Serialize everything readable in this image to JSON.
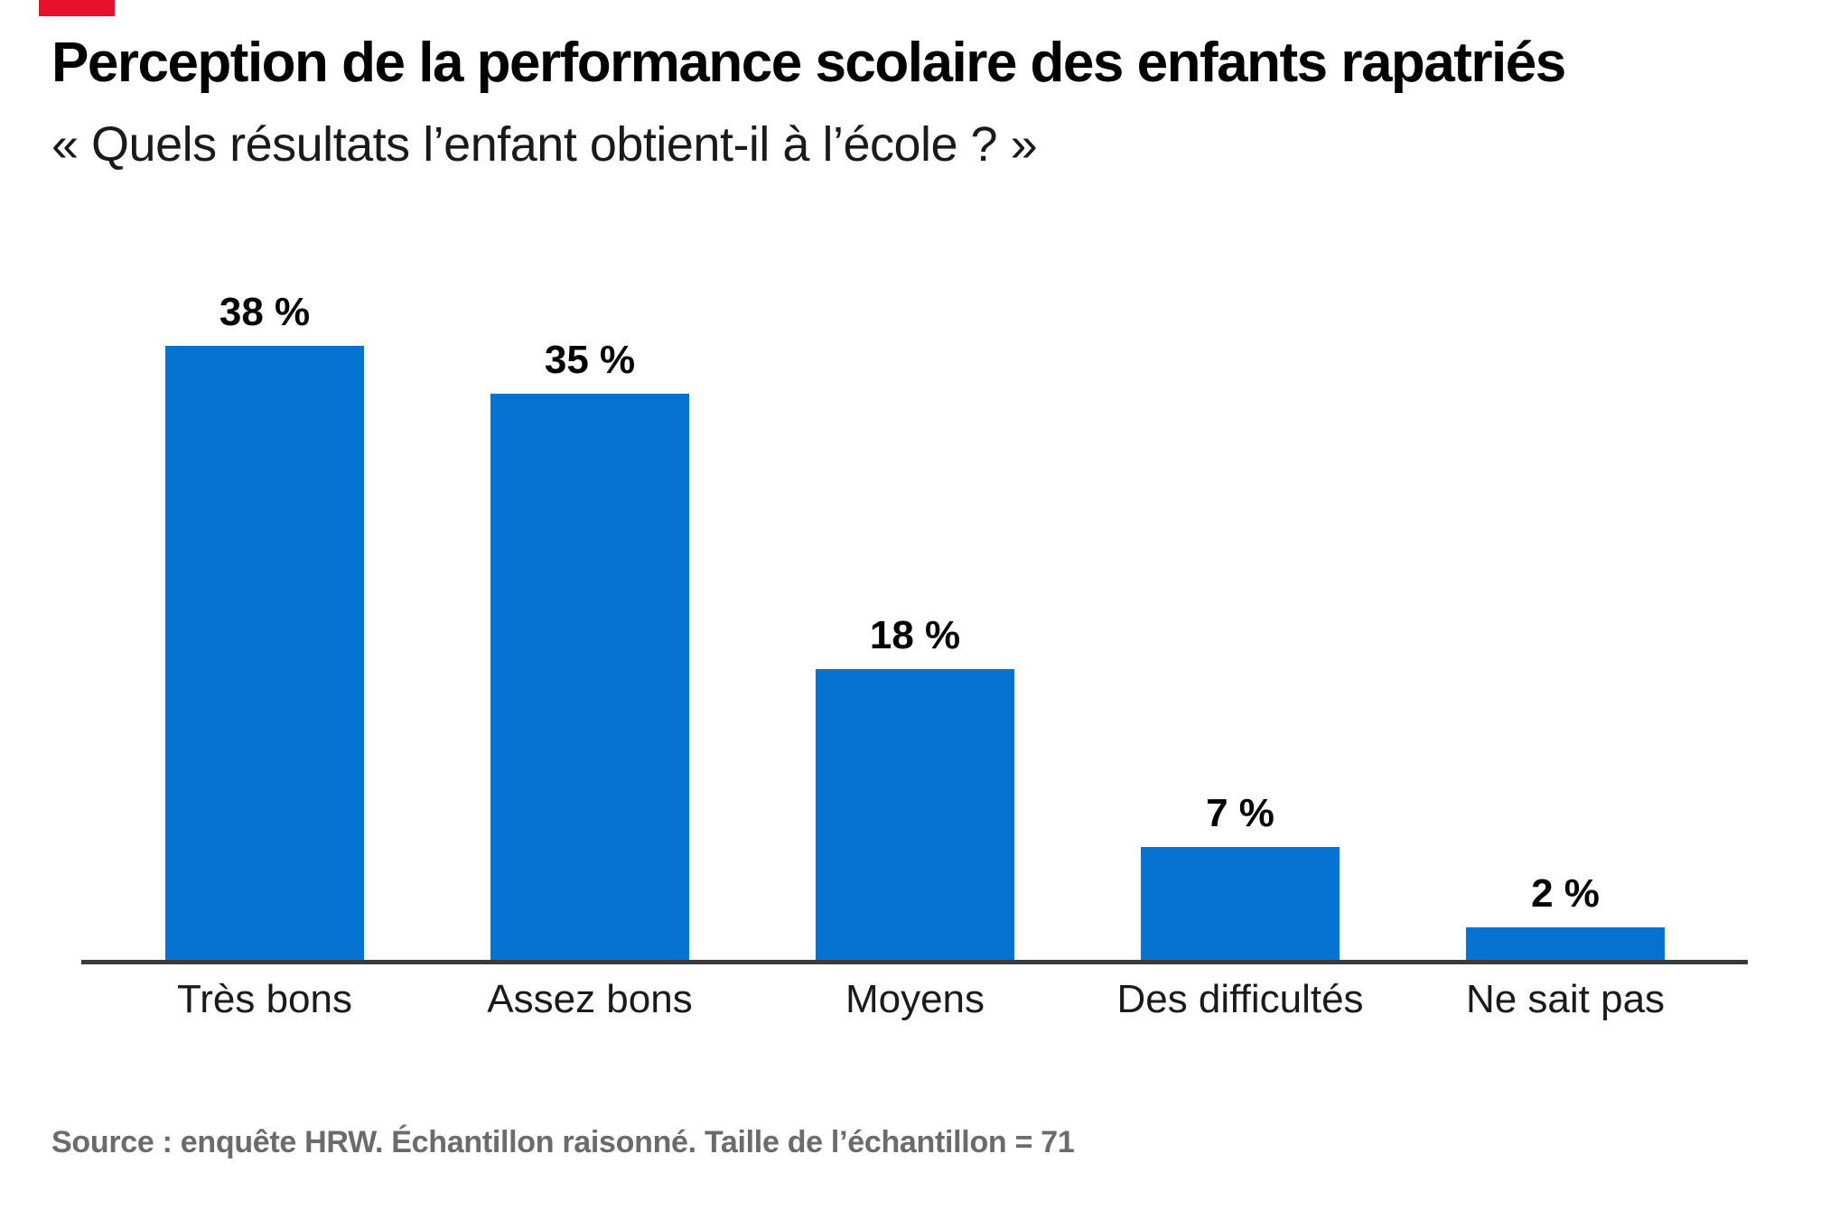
{
  "brand": {
    "accent_color": "#e8112d"
  },
  "header": {
    "title": "Perception de la performance scolaire des enfants rapatriés",
    "subtitle": "« Quels résultats l’enfant obtient-il à l’école ? »"
  },
  "chart_data": {
    "type": "bar",
    "categories": [
      "Très bons",
      "Assez bons",
      "Moyens",
      "Des difficultés",
      "Ne sait pas"
    ],
    "values": [
      38,
      35,
      18,
      7,
      2
    ],
    "value_labels": [
      "38 %",
      "35 %",
      "18 %",
      "7 %",
      "2 %"
    ],
    "title": "Perception de la performance scolaire des enfants rapatriés",
    "xlabel": "",
    "ylabel": "",
    "ylim": [
      0,
      40
    ],
    "grid": false,
    "legend": false,
    "bar_color": "#0573cf",
    "axis_color": "#3a3a3a",
    "value_label_color": "#000000",
    "category_label_color": "#1a1a1a"
  },
  "footer": {
    "source": "Source : enquête HRW. Échantillon raisonné. Taille de l’échantillon = 71"
  }
}
